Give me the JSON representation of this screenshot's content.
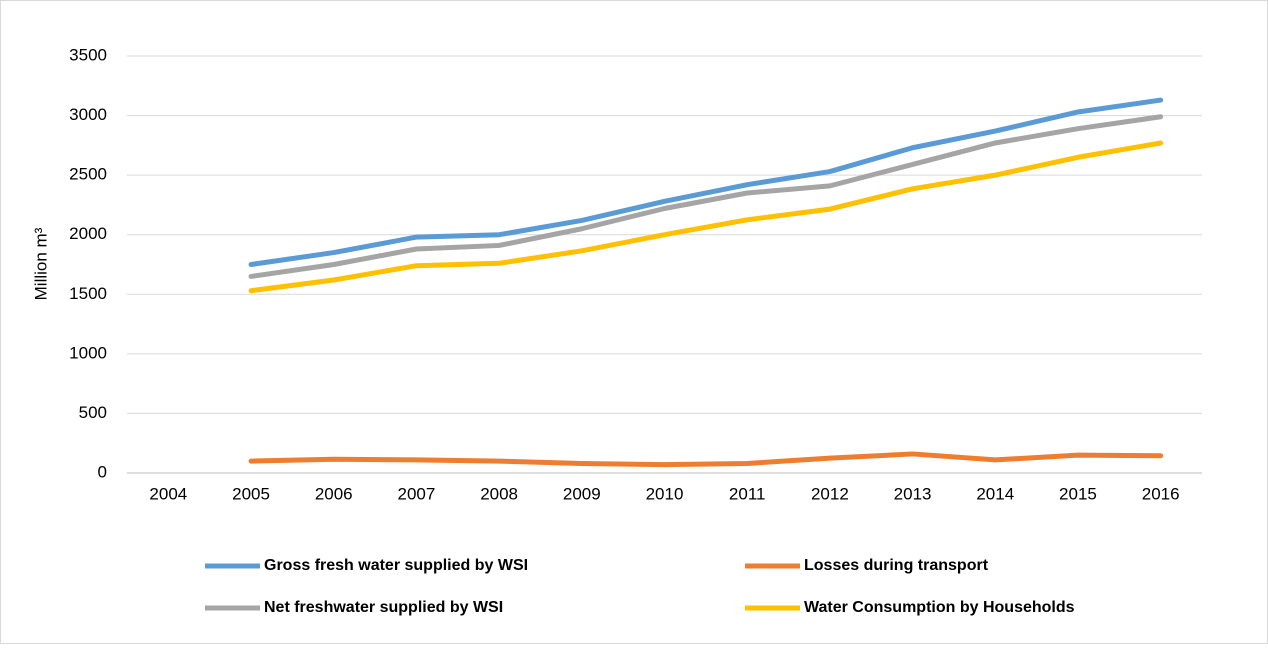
{
  "chart_data": {
    "type": "line",
    "y_label": "Million m³",
    "categories": [
      "2004",
      "2005",
      "2006",
      "2007",
      "2008",
      "2009",
      "2010",
      "2011",
      "2012",
      "2013",
      "2014",
      "2015",
      "2016"
    ],
    "series": [
      {
        "name": "Gross fresh water supplied by WSI",
        "color": "#5b9bd5",
        "values": [
          null,
          1750,
          1850,
          1980,
          2000,
          2120,
          2280,
          2420,
          2530,
          2730,
          2870,
          3030,
          3130
        ]
      },
      {
        "name": "Losses during transport",
        "color": "#ed7d31",
        "values": [
          null,
          100,
          115,
          110,
          100,
          80,
          70,
          80,
          125,
          160,
          110,
          150,
          145
        ]
      },
      {
        "name": "Net freshwater supplied by WSI",
        "color": "#a5a5a5",
        "values": [
          null,
          1650,
          1750,
          1880,
          1910,
          2050,
          2220,
          2350,
          2410,
          2590,
          2770,
          2890,
          2990
        ]
      },
      {
        "name": "Water Consumption by Households",
        "color": "#ffc000",
        "values": [
          null,
          1530,
          1620,
          1740,
          1760,
          1865,
          2000,
          2125,
          2215,
          2385,
          2500,
          2650,
          2770
        ]
      }
    ],
    "ylim": [
      0,
      3500
    ],
    "yticks": [
      0,
      500,
      1000,
      1500,
      2000,
      2500,
      3000,
      3500
    ],
    "grid": true
  }
}
